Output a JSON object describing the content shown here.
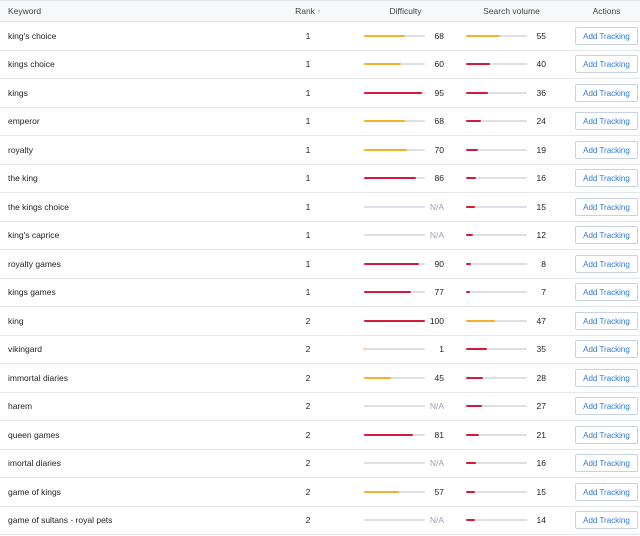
{
  "header": {
    "keyword": "Keyword",
    "rank": "Rank",
    "rank_sort_icon": "↑",
    "difficulty": "Difficulty",
    "search_volume": "Search volume",
    "actions": "Actions"
  },
  "colors": {
    "red": "#d41a3b",
    "orange": "#f6b02d",
    "track": "#dcdfe4",
    "link": "#2f7bd1"
  },
  "rows": [
    {
      "keyword": "king's choice",
      "rank": "1",
      "difficulty": "68",
      "difficulty_level": 0.68,
      "difficulty_color": "orange",
      "volume": "55",
      "volume_level": 0.55,
      "volume_color": "orange",
      "action": "Add Tracking"
    },
    {
      "keyword": "kings choice",
      "rank": "1",
      "difficulty": "60",
      "difficulty_level": 0.6,
      "difficulty_color": "orange",
      "volume": "40",
      "volume_level": 0.4,
      "volume_color": "red",
      "action": "Add Tracking"
    },
    {
      "keyword": "kings",
      "rank": "1",
      "difficulty": "95",
      "difficulty_level": 0.95,
      "difficulty_color": "red",
      "volume": "36",
      "volume_level": 0.36,
      "volume_color": "red",
      "action": "Add Tracking"
    },
    {
      "keyword": "emperor",
      "rank": "1",
      "difficulty": "68",
      "difficulty_level": 0.68,
      "difficulty_color": "orange",
      "volume": "24",
      "volume_level": 0.24,
      "volume_color": "red",
      "action": "Add Tracking"
    },
    {
      "keyword": "royalty",
      "rank": "1",
      "difficulty": "70",
      "difficulty_level": 0.7,
      "difficulty_color": "orange",
      "volume": "19",
      "volume_level": 0.19,
      "volume_color": "red",
      "action": "Add Tracking"
    },
    {
      "keyword": "the king",
      "rank": "1",
      "difficulty": "86",
      "difficulty_level": 0.86,
      "difficulty_color": "red",
      "volume": "16",
      "volume_level": 0.16,
      "volume_color": "red",
      "action": "Add Tracking"
    },
    {
      "keyword": "the kings choice",
      "rank": "1",
      "difficulty": "N/A",
      "difficulty_level": 0,
      "difficulty_color": "none",
      "volume": "15",
      "volume_level": 0.15,
      "volume_color": "red",
      "action": "Add Tracking"
    },
    {
      "keyword": "king's caprice",
      "rank": "1",
      "difficulty": "N/A",
      "difficulty_level": 0,
      "difficulty_color": "none",
      "volume": "12",
      "volume_level": 0.12,
      "volume_color": "red",
      "action": "Add Tracking"
    },
    {
      "keyword": "royalty games",
      "rank": "1",
      "difficulty": "90",
      "difficulty_level": 0.9,
      "difficulty_color": "red",
      "volume": "8",
      "volume_level": 0.08,
      "volume_color": "red",
      "action": "Add Tracking"
    },
    {
      "keyword": "kings games",
      "rank": "1",
      "difficulty": "77",
      "difficulty_level": 0.77,
      "difficulty_color": "red",
      "volume": "7",
      "volume_level": 0.07,
      "volume_color": "red",
      "action": "Add Tracking"
    },
    {
      "keyword": "king",
      "rank": "2",
      "difficulty": "100",
      "difficulty_level": 1.0,
      "difficulty_color": "red",
      "volume": "47",
      "volume_level": 0.47,
      "volume_color": "orange",
      "action": "Add Tracking"
    },
    {
      "keyword": "vikingard",
      "rank": "2",
      "difficulty": "1",
      "difficulty_level": 0.01,
      "difficulty_color": "orange",
      "volume": "35",
      "volume_level": 0.35,
      "volume_color": "red",
      "action": "Add Tracking"
    },
    {
      "keyword": "immortal diaries",
      "rank": "2",
      "difficulty": "45",
      "difficulty_level": 0.45,
      "difficulty_color": "orange",
      "volume": "28",
      "volume_level": 0.28,
      "volume_color": "red",
      "action": "Add Tracking"
    },
    {
      "keyword": "harem",
      "rank": "2",
      "difficulty": "N/A",
      "difficulty_level": 0,
      "difficulty_color": "none",
      "volume": "27",
      "volume_level": 0.27,
      "volume_color": "red",
      "action": "Add Tracking"
    },
    {
      "keyword": "queen games",
      "rank": "2",
      "difficulty": "81",
      "difficulty_level": 0.81,
      "difficulty_color": "red",
      "volume": "21",
      "volume_level": 0.21,
      "volume_color": "red",
      "action": "Add Tracking"
    },
    {
      "keyword": "imortal diaries",
      "rank": "2",
      "difficulty": "N/A",
      "difficulty_level": 0,
      "difficulty_color": "none",
      "volume": "16",
      "volume_level": 0.16,
      "volume_color": "red",
      "action": "Add Tracking"
    },
    {
      "keyword": "game of kings",
      "rank": "2",
      "difficulty": "57",
      "difficulty_level": 0.57,
      "difficulty_color": "orange",
      "volume": "15",
      "volume_level": 0.15,
      "volume_color": "red",
      "action": "Add Tracking"
    },
    {
      "keyword": "game of sultans - royal pets",
      "rank": "2",
      "difficulty": "N/A",
      "difficulty_level": 0,
      "difficulty_color": "none",
      "volume": "14",
      "volume_level": 0.14,
      "volume_color": "red",
      "action": "Add Tracking"
    }
  ]
}
